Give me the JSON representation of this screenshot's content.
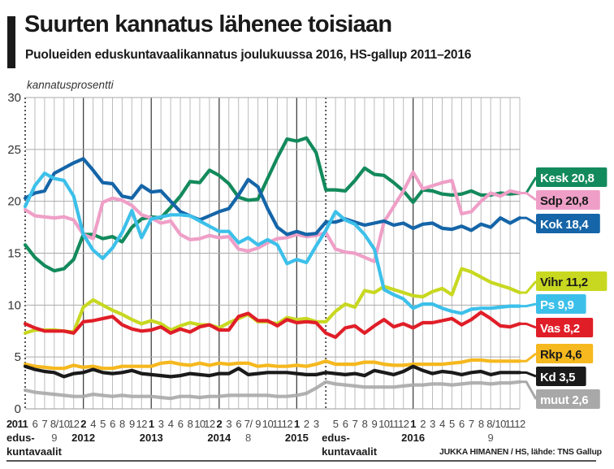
{
  "chart_data": {
    "type": "line",
    "title": "Suurten kannatus lähenee toisiaan",
    "subtitle": "Puolueiden eduskuntavaalikannatus joulukuussa 2016, HS-gallup 2011–2016",
    "ylabel": "kannatusprosentti",
    "xlabel": "",
    "ylim": [
      0,
      30
    ],
    "yticks": [
      0,
      5,
      10,
      15,
      20,
      25,
      30
    ],
    "grid": true,
    "legend": "right",
    "x_ticks": [
      "2011",
      "6",
      "7",
      "8/",
      "10",
      "12",
      "2",
      "4",
      "5",
      "6",
      "8",
      "9",
      "12",
      "1",
      "3",
      "4",
      "6",
      "8",
      "10",
      "12",
      "2",
      "3",
      "6",
      "7/",
      "9",
      "10",
      "11",
      "12",
      "1",
      "2",
      "3",
      "",
      "5",
      "6",
      "7",
      "8",
      "9",
      "10",
      "11",
      "12",
      "1",
      "2",
      "3",
      "4",
      "5",
      "6",
      "7",
      "8",
      "8/",
      "10",
      "11",
      "12"
    ],
    "x_sublabels": [
      {
        "index": 0,
        "text": "edus-"
      },
      {
        "index": 0,
        "text2": "kuntavaalit"
      },
      {
        "index": 3,
        "text": "9"
      },
      {
        "index": 6,
        "text": "2012"
      },
      {
        "index": 13,
        "text": "2013"
      },
      {
        "index": 20,
        "text": "2014"
      },
      {
        "index": 23,
        "text": "8"
      },
      {
        "index": 28,
        "text": "2015"
      },
      {
        "index": 31,
        "text": "edus-"
      },
      {
        "index": 31,
        "text2": "kuntavaalit"
      },
      {
        "index": 40,
        "text": "2016"
      },
      {
        "index": 48,
        "text": "9"
      }
    ],
    "year_indices": [
      0,
      6,
      13,
      20,
      28,
      40
    ],
    "election_indices": [
      0,
      31
    ],
    "series": [
      {
        "name": "Kesk",
        "label": "Kesk 20,8",
        "color": "#138a5c",
        "text_color": "#ffffff",
        "values": [
          15.8,
          14.6,
          13.8,
          13.3,
          13.5,
          14.4,
          16.8,
          16.8,
          16.4,
          16.6,
          16.1,
          17.5,
          18.3,
          18.5,
          18.4,
          19.4,
          20.5,
          21.9,
          21.8,
          23.0,
          22.5,
          21.7,
          20.4,
          20.1,
          20.2,
          22.2,
          24.2,
          26.0,
          25.8,
          26.1,
          24.7,
          21.1,
          21.1,
          21.0,
          22.0,
          23.2,
          22.6,
          22.5,
          21.8,
          21.0,
          19.9,
          21.1,
          21.0,
          20.7,
          20.6,
          20.7,
          21.0,
          20.6,
          20.6,
          20.8,
          20.7,
          20.8
        ]
      },
      {
        "name": "Sdp",
        "label": "Sdp 20,8",
        "color": "#ef9fc7",
        "text_color": "#1a1a1a",
        "values": [
          19.2,
          18.6,
          18.5,
          18.4,
          18.5,
          18.2,
          16.8,
          16.4,
          19.9,
          20.3,
          20.1,
          19.6,
          18.7,
          18.4,
          17.9,
          18.1,
          16.8,
          16.3,
          16.4,
          16.7,
          16.5,
          16.6,
          15.4,
          15.2,
          15.5,
          16.0,
          16.4,
          16.5,
          16.8,
          16.6,
          16.7,
          17.0,
          15.4,
          15.1,
          15.0,
          14.6,
          14.2,
          18.0,
          19.5,
          21.0,
          22.8,
          21.2,
          21.5,
          21.8,
          22.0,
          18.8,
          19.0,
          20.0,
          20.8,
          20.5,
          21.0,
          20.8
        ]
      },
      {
        "name": "Kok",
        "label": "Kok 18,4",
        "color": "#1565a8",
        "text_color": "#ffffff",
        "values": [
          20.3,
          20.8,
          21.0,
          22.7,
          23.2,
          23.7,
          24.1,
          23.0,
          21.8,
          21.7,
          20.5,
          20.3,
          21.5,
          20.9,
          21.0,
          20.0,
          19.0,
          18.6,
          18.2,
          18.6,
          19.0,
          19.3,
          20.6,
          22.1,
          21.4,
          19.3,
          17.5,
          16.8,
          17.1,
          16.8,
          16.9,
          18.0,
          18.0,
          18.3,
          18.0,
          17.7,
          17.9,
          18.1,
          17.7,
          17.9,
          17.4,
          17.8,
          17.9,
          17.4,
          17.3,
          17.6,
          17.2,
          17.8,
          17.5,
          18.4,
          17.9,
          18.4
        ]
      },
      {
        "name": "Vihr",
        "label": "Vihr 11,2",
        "color": "#c8d820",
        "text_color": "#1a1a1a",
        "values": [
          7.3,
          7.6,
          7.6,
          7.6,
          7.5,
          7.4,
          9.8,
          10.5,
          10.0,
          9.5,
          9.1,
          8.6,
          8.2,
          8.5,
          8.2,
          7.6,
          8.0,
          8.3,
          8.1,
          8.1,
          7.8,
          8.3,
          8.7,
          9.1,
          8.4,
          8.4,
          8.2,
          8.8,
          8.6,
          8.7,
          8.4,
          8.4,
          9.4,
          10.1,
          9.8,
          11.4,
          11.2,
          11.8,
          11.5,
          11.2,
          10.9,
          10.8,
          11.3,
          11.6,
          11.0,
          13.5,
          13.2,
          12.7,
          12.2,
          11.9,
          11.6,
          11.2
        ]
      },
      {
        "name": "Ps",
        "label": "Ps 9,9",
        "color": "#3cc0ea",
        "text_color": "#ffffff",
        "values": [
          19.5,
          21.5,
          22.7,
          22.2,
          22.0,
          20.5,
          16.8,
          15.3,
          14.5,
          15.5,
          17.0,
          19.1,
          16.5,
          18.3,
          18.5,
          18.7,
          18.7,
          18.6,
          18.1,
          17.6,
          17.1,
          17.1,
          16.0,
          16.5,
          15.8,
          16.3,
          15.8,
          14.0,
          14.4,
          14.1,
          15.7,
          17.2,
          19.0,
          18.2,
          17.8,
          16.8,
          15.4,
          11.5,
          11.0,
          10.6,
          9.7,
          10.1,
          10.1,
          9.7,
          9.4,
          9.2,
          9.6,
          9.7,
          9.7,
          9.8,
          9.9,
          9.9
        ]
      },
      {
        "name": "Vas",
        "label": "Vas 8,2",
        "color": "#e01e28",
        "text_color": "#ffffff",
        "values": [
          8.2,
          7.8,
          7.5,
          7.5,
          7.5,
          7.3,
          8.4,
          8.5,
          8.7,
          8.9,
          8.1,
          7.7,
          7.5,
          7.6,
          7.9,
          7.3,
          7.7,
          7.4,
          7.9,
          8.1,
          7.6,
          7.6,
          8.9,
          9.2,
          8.5,
          8.5,
          8.0,
          8.6,
          8.3,
          8.4,
          8.3,
          7.3,
          6.9,
          7.8,
          8.0,
          7.3,
          8.0,
          8.6,
          7.9,
          8.2,
          7.8,
          8.3,
          8.3,
          8.5,
          8.7,
          8.1,
          8.6,
          9.3,
          8.7,
          8.0,
          7.9,
          8.2
        ]
      },
      {
        "name": "Rkp",
        "label": "Rkp 4,6",
        "color": "#f5b81e",
        "text_color": "#1a1a1a",
        "values": [
          4.3,
          4.1,
          4.0,
          3.9,
          3.9,
          4.2,
          4.0,
          4.1,
          3.9,
          3.9,
          4.1,
          4.1,
          4.1,
          4.1,
          4.4,
          4.5,
          4.3,
          4.2,
          4.4,
          4.2,
          4.4,
          4.3,
          4.4,
          4.4,
          4.1,
          4.2,
          4.1,
          4.1,
          4.2,
          4.1,
          4.3,
          4.6,
          4.3,
          4.3,
          4.3,
          4.5,
          4.5,
          4.3,
          4.2,
          4.2,
          4.3,
          4.3,
          4.3,
          4.3,
          4.4,
          4.5,
          4.7,
          4.7,
          4.6,
          4.6,
          4.6,
          4.6
        ]
      },
      {
        "name": "Kd",
        "label": "Kd 3,5",
        "color": "#1a1a1a",
        "text_color": "#ffffff",
        "values": [
          4.1,
          3.8,
          3.6,
          3.5,
          3.1,
          3.4,
          3.5,
          3.8,
          3.5,
          3.4,
          3.5,
          3.7,
          3.4,
          3.3,
          3.2,
          3.1,
          3.2,
          3.4,
          3.3,
          3.2,
          3.4,
          3.4,
          3.9,
          3.3,
          3.4,
          3.5,
          3.5,
          3.5,
          3.4,
          3.3,
          3.3,
          3.5,
          3.4,
          3.3,
          3.4,
          3.2,
          3.7,
          3.5,
          3.3,
          3.6,
          4.1,
          3.7,
          3.4,
          3.6,
          3.5,
          3.3,
          3.5,
          3.6,
          3.3,
          3.5,
          3.5,
          3.5
        ]
      },
      {
        "name": "muut",
        "label": "muut 2,6",
        "color": "#a8a8a8",
        "text_color": "#ffffff",
        "values": [
          1.8,
          1.6,
          1.5,
          1.4,
          1.3,
          1.2,
          1.2,
          1.4,
          1.3,
          1.2,
          1.3,
          1.2,
          1.2,
          1.2,
          1.1,
          1.0,
          1.2,
          1.2,
          1.1,
          1.2,
          1.2,
          1.3,
          1.3,
          1.3,
          1.3,
          1.3,
          1.2,
          1.2,
          1.3,
          1.5,
          2.0,
          2.6,
          2.4,
          2.3,
          2.2,
          2.1,
          2.1,
          2.1,
          2.1,
          2.2,
          2.3,
          2.3,
          2.4,
          2.4,
          2.3,
          2.4,
          2.5,
          2.5,
          2.4,
          2.5,
          2.5,
          2.6
        ]
      }
    ]
  },
  "credit": "JUKKA HIMANEN / HS, lähde: TNS Gallup"
}
